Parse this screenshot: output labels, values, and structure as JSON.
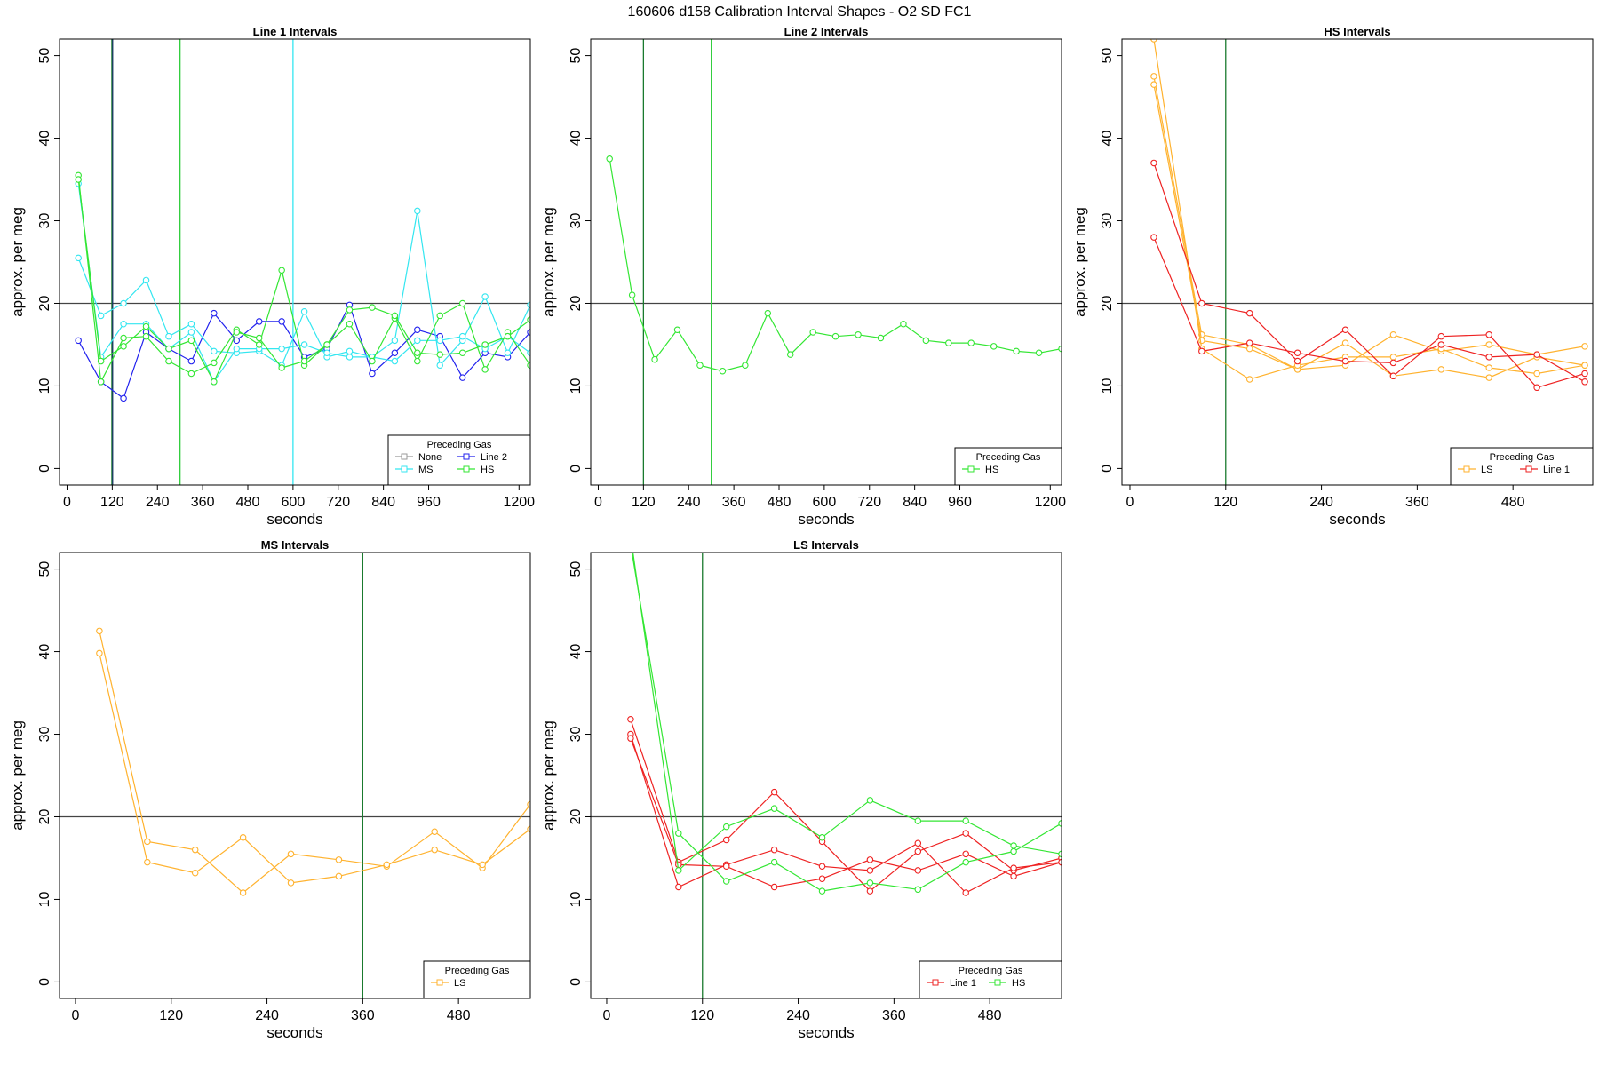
{
  "figure_title": "160606   d158   Calibration Interval Shapes - O2 SD FC1",
  "colors": {
    "None": "#999999",
    "Line 2": "#2222ee",
    "MS": "#33e6f0",
    "HS": "#33e633",
    "LS": "#ffb22e",
    "Line 1": "#ee2222",
    "vline_dark": "#1a7a2e",
    "vline_green": "#2ecc3a",
    "vline_navy": "#1a3a66",
    "vline_cyan": "#33e6f0",
    "refline": "#444444"
  },
  "chart_data": [
    {
      "id": "line1",
      "type": "line",
      "title": "Line 1 Intervals",
      "xlabel": "seconds",
      "ylabel": "approx. per meg",
      "xlim": [
        -20,
        1230
      ],
      "ylim": [
        -2,
        52
      ],
      "xticks": [
        0,
        120,
        240,
        360,
        480,
        600,
        720,
        840,
        960,
        1200
      ],
      "yticks": [
        0,
        10,
        20,
        30,
        40,
        50
      ],
      "hline": 20,
      "vlines": [
        {
          "x": 119,
          "color": "#1a7a2e"
        },
        {
          "x": 121,
          "color": "#1a3a66"
        },
        {
          "x": 300,
          "color": "#2ecc3a"
        },
        {
          "x": 600,
          "color": "#33e6f0"
        }
      ],
      "legend": {
        "title": "Preceding Gas",
        "position": "bottom-right",
        "columns": 2,
        "entries": [
          "None",
          "Line 2",
          "MS",
          "HS"
        ]
      },
      "series": [
        {
          "name": "Line 2",
          "x": [
            30,
            90,
            150,
            210,
            270,
            330,
            390,
            450,
            510,
            570,
            630,
            690,
            750,
            810,
            870,
            930,
            990,
            1050,
            1110,
            1170,
            1230
          ],
          "y": [
            15.5,
            10.5,
            8.5,
            16.5,
            14.5,
            13,
            18.8,
            15.5,
            17.8,
            17.8,
            13.5,
            14.5,
            19.8,
            11.5,
            14,
            16.8,
            16,
            11,
            14,
            13.5,
            16.5
          ]
        },
        {
          "name": "MS",
          "x": [
            30,
            90,
            150,
            210,
            270,
            330,
            390,
            450,
            510,
            570,
            630,
            690,
            750,
            810,
            870,
            930,
            990,
            1050,
            1110,
            1170,
            1230
          ],
          "y": [
            25.5,
            18.5,
            20,
            22.8,
            16,
            17.5,
            14.2,
            14,
            14.2,
            12.5,
            19,
            13.5,
            14.2,
            13.5,
            15.5,
            31.2,
            12.5,
            15.5,
            20.8,
            14,
            19.8
          ]
        },
        {
          "name": "MS",
          "x": [
            30,
            90,
            150,
            210,
            270,
            330,
            390,
            450,
            510,
            570,
            630,
            690,
            750,
            810,
            870,
            930,
            990,
            1050,
            1110,
            1170,
            1230
          ],
          "y": [
            34.5,
            13.5,
            17.5,
            17.5,
            14.5,
            16.5,
            10.5,
            14.5,
            14.5,
            14.5,
            15,
            14,
            13.5,
            13.5,
            13,
            15.5,
            15.5,
            16,
            14.5,
            16,
            14
          ]
        },
        {
          "name": "HS",
          "x": [
            30,
            90,
            150,
            210,
            270,
            330,
            390,
            450,
            510,
            570,
            630,
            690,
            750,
            810,
            870,
            930,
            990,
            1050,
            1110,
            1170,
            1230
          ],
          "y": [
            35.5,
            10.5,
            15.8,
            16,
            13,
            11.5,
            12.8,
            16.8,
            15,
            24,
            12.5,
            15,
            17.5,
            13,
            18.2,
            13,
            18.5,
            20,
            12,
            16.5,
            12.5
          ]
        },
        {
          "name": "HS",
          "x": [
            30,
            90,
            150,
            210,
            270,
            330,
            390,
            450,
            510,
            570,
            630,
            690,
            750,
            810,
            870,
            930,
            990,
            1050,
            1110,
            1170,
            1230
          ],
          "y": [
            35,
            13,
            14.8,
            17.2,
            14.5,
            15.5,
            10.5,
            16.5,
            15.8,
            12.2,
            13,
            15,
            19.2,
            19.5,
            18.5,
            14,
            13.8,
            14,
            15,
            16,
            18
          ]
        }
      ]
    },
    {
      "id": "line2",
      "type": "line",
      "title": "Line 2 Intervals",
      "xlabel": "seconds",
      "ylabel": "approx. per meg",
      "xlim": [
        -20,
        1230
      ],
      "ylim": [
        -2,
        52
      ],
      "xticks": [
        0,
        120,
        240,
        360,
        480,
        600,
        720,
        840,
        960,
        1200
      ],
      "yticks": [
        0,
        10,
        20,
        30,
        40,
        50
      ],
      "hline": 20,
      "vlines": [
        {
          "x": 120,
          "color": "#1a7a2e"
        },
        {
          "x": 300,
          "color": "#2ecc3a"
        }
      ],
      "legend": {
        "title": "Preceding Gas",
        "position": "bottom-right",
        "columns": 1,
        "entries": [
          "HS"
        ]
      },
      "series": [
        {
          "name": "HS",
          "x": [
            30,
            90,
            150,
            210,
            270,
            330,
            390,
            450,
            510,
            570,
            630,
            690,
            750,
            810,
            870,
            930,
            990,
            1050,
            1110,
            1170,
            1230
          ],
          "y": [
            37.5,
            21,
            13.2,
            16.8,
            12.5,
            11.8,
            12.5,
            18.8,
            13.8,
            16.5,
            16,
            16.2,
            15.8,
            17.5,
            15.5,
            15.2,
            15.2,
            14.8,
            14.2,
            14,
            14.5
          ]
        }
      ]
    },
    {
      "id": "hs",
      "type": "line",
      "title": "HS Intervals",
      "xlabel": "seconds",
      "ylabel": "approx. per meg",
      "xlim": [
        -10,
        580
      ],
      "ylim": [
        -2,
        52
      ],
      "xticks": [
        0,
        120,
        240,
        360,
        480
      ],
      "yticks": [
        0,
        10,
        20,
        30,
        40,
        50
      ],
      "hline": 20,
      "vlines": [
        {
          "x": 120,
          "color": "#1a7a2e"
        }
      ],
      "legend": {
        "title": "Preceding Gas",
        "position": "bottom-right",
        "columns": 2,
        "entries": [
          "LS",
          "Line 1"
        ]
      },
      "series": [
        {
          "name": "LS",
          "x": [
            30,
            90,
            150,
            210,
            270,
            330,
            390,
            450,
            510,
            570
          ],
          "y": [
            47.5,
            16.2,
            15,
            12,
            12.5,
            16.2,
            14.2,
            15,
            13.8,
            14.8
          ]
        },
        {
          "name": "LS",
          "x": [
            30,
            90,
            150,
            210,
            270,
            330,
            390,
            450,
            510,
            570
          ],
          "y": [
            46.5,
            15.5,
            14.5,
            12,
            15.2,
            11.2,
            12,
            11,
            13.5,
            12.5
          ]
        },
        {
          "name": "LS",
          "x": [
            30,
            90,
            150,
            210,
            270,
            330,
            390,
            450,
            510,
            570
          ],
          "y": [
            52,
            14.5,
            10.8,
            12.5,
            13.5,
            13.5,
            14.5,
            12.2,
            11.5,
            12.5
          ]
        },
        {
          "name": "Line 1",
          "x": [
            30,
            90,
            150,
            210,
            270,
            330,
            390,
            450,
            510,
            570
          ],
          "y": [
            37,
            20,
            18.8,
            13,
            16.8,
            11.2,
            16,
            16.2,
            9.8,
            11.5
          ]
        },
        {
          "name": "Line 1",
          "x": [
            30,
            90,
            150,
            210,
            270,
            330,
            390,
            450,
            510,
            570
          ],
          "y": [
            28,
            14.2,
            15.2,
            14,
            13,
            12.8,
            15,
            13.5,
            13.8,
            10.5
          ]
        }
      ]
    },
    {
      "id": "ms",
      "type": "line",
      "title": "MS Intervals",
      "xlabel": "seconds",
      "ylabel": "approx. per meg",
      "xlim": [
        -20,
        570
      ],
      "ylim": [
        -2,
        52
      ],
      "xticks": [
        0,
        120,
        240,
        360,
        480
      ],
      "yticks": [
        0,
        10,
        20,
        30,
        40,
        50
      ],
      "hline": 20,
      "vlines": [
        {
          "x": 360,
          "color": "#1a7a2e"
        }
      ],
      "legend": {
        "title": "Preceding Gas",
        "position": "bottom-right",
        "columns": 1,
        "entries": [
          "LS"
        ]
      },
      "series": [
        {
          "name": "LS",
          "x": [
            30,
            90,
            150,
            210,
            270,
            330,
            390,
            450,
            510,
            570
          ],
          "y": [
            42.5,
            17,
            16,
            10.8,
            15.5,
            14.8,
            14,
            18.2,
            13.8,
            21.5
          ]
        },
        {
          "name": "LS",
          "x": [
            30,
            90,
            150,
            210,
            270,
            330,
            390,
            450,
            510,
            570
          ],
          "y": [
            39.8,
            14.5,
            13.2,
            17.5,
            12,
            12.8,
            14.2,
            16,
            14.2,
            18.5
          ]
        }
      ]
    },
    {
      "id": "ls",
      "type": "line",
      "title": "LS Intervals",
      "xlabel": "seconds",
      "ylabel": "approx. per meg",
      "xlim": [
        -20,
        570
      ],
      "ylim": [
        -2,
        52
      ],
      "xticks": [
        0,
        120,
        240,
        360,
        480
      ],
      "yticks": [
        0,
        10,
        20,
        30,
        40,
        50
      ],
      "hline": 20,
      "vlines": [
        {
          "x": 120,
          "color": "#1a7a2e"
        }
      ],
      "legend": {
        "title": "Preceding Gas",
        "position": "bottom-right",
        "columns": 2,
        "entries": [
          "Line 1",
          "HS"
        ]
      },
      "series": [
        {
          "name": "Line 1",
          "x": [
            30,
            90,
            150,
            210,
            270,
            330,
            390,
            450,
            510,
            570
          ],
          "y": [
            31.8,
            14.5,
            17.2,
            23,
            17,
            11,
            15.8,
            18,
            13.5,
            15
          ]
        },
        {
          "name": "Line 1",
          "x": [
            30,
            90,
            150,
            210,
            270,
            330,
            390,
            450,
            510,
            570
          ],
          "y": [
            30,
            11.5,
            14.2,
            16,
            14,
            13.5,
            16.8,
            10.8,
            13.8,
            14.5
          ]
        },
        {
          "name": "Line 1",
          "x": [
            30,
            90,
            150,
            210,
            270,
            330,
            390,
            450,
            510,
            570
          ],
          "y": [
            29.5,
            14.2,
            14,
            11.5,
            12.5,
            14.8,
            13.5,
            15.5,
            12.8,
            14.5
          ]
        },
        {
          "name": "HS",
          "x": [
            30,
            90,
            150,
            210,
            270,
            330,
            390,
            450,
            510,
            570
          ],
          "y": [
            53,
            18,
            12.2,
            14.5,
            11,
            12,
            11.2,
            14.5,
            15.8,
            19.2
          ]
        },
        {
          "name": "HS",
          "x": [
            30,
            90,
            150,
            210,
            270,
            330,
            390,
            450,
            510,
            570
          ],
          "y": [
            54,
            13.5,
            18.8,
            21,
            17.5,
            22,
            19.5,
            19.5,
            16.5,
            15.5
          ]
        }
      ]
    }
  ]
}
